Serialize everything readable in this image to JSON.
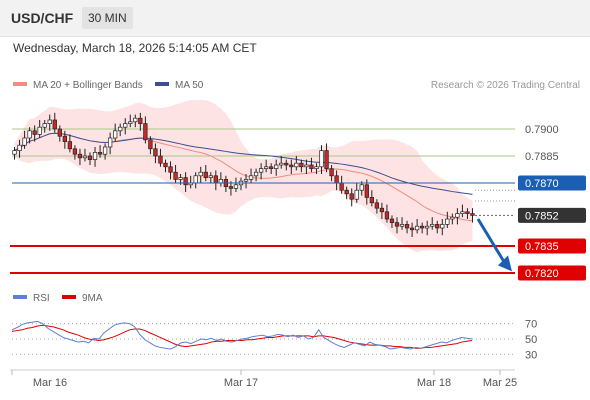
{
  "header": {
    "symbol": "USD/CHF",
    "timeframe": "30 MIN",
    "datetime": "Wednesday, March 18, 2026 5:14:05 AM CET"
  },
  "legend": {
    "ma20": "MA 20 + Bollinger Bands",
    "ma50": "MA 50",
    "credit": "Research © 2026 Trading Central",
    "rsi": "RSI",
    "rsi_ma": "9MA"
  },
  "colors": {
    "ma20": "#f28b82",
    "band_fill": "#fde3e3",
    "ma50": "#3d4f8e",
    "up_candle": "#ffffff",
    "down_candle": "#c62828",
    "candle_outline": "#222222",
    "resistance_green": "#a8c98a",
    "pivot_blue": "#1a5fb4",
    "support_red": "#e00000",
    "last_price": "#333333",
    "rsi": "#5b7fd6",
    "rsi_ma": "#e00000",
    "arrow": "#1a5fb4"
  },
  "chart_data": [
    {
      "type": "candlestick",
      "title": "USD/CHF",
      "timeframe": "30 MIN",
      "x_axis_ticks": [
        "Mar 16",
        "Mar 17",
        "Mar 18",
        "Mar 25"
      ],
      "ylim": [
        0.7815,
        0.7915
      ],
      "price_levels": [
        {
          "value": "0.7900",
          "kind": "resistance"
        },
        {
          "value": "0.7885",
          "kind": "resistance"
        },
        {
          "value": "0.7870",
          "kind": "pivot"
        },
        {
          "value": "0.7852",
          "kind": "last"
        },
        {
          "value": "0.7835",
          "kind": "support"
        },
        {
          "value": "0.7820",
          "kind": "support"
        }
      ],
      "forecast_arrow": {
        "from": 0.785,
        "to": 0.7822
      },
      "close_series": [
        0.7888,
        0.7891,
        0.7895,
        0.7899,
        0.7897,
        0.7901,
        0.7903,
        0.7905,
        0.79,
        0.7896,
        0.7893,
        0.7889,
        0.7886,
        0.7884,
        0.7885,
        0.7883,
        0.7887,
        0.7886,
        0.789,
        0.7895,
        0.7899,
        0.7901,
        0.7903,
        0.7904,
        0.7906,
        0.7903,
        0.7894,
        0.7889,
        0.7885,
        0.7881,
        0.7879,
        0.7876,
        0.7872,
        0.7873,
        0.7869,
        0.787,
        0.7874,
        0.7876,
        0.7873,
        0.7874,
        0.787,
        0.7872,
        0.7868,
        0.7867,
        0.7869,
        0.7871,
        0.7872,
        0.7874,
        0.7876,
        0.7878,
        0.7879,
        0.7878,
        0.788,
        0.7881,
        0.788,
        0.7879,
        0.7881,
        0.7879,
        0.788,
        0.7878,
        0.7879,
        0.7888,
        0.7878,
        0.7874,
        0.787,
        0.7866,
        0.7864,
        0.7861,
        0.7866,
        0.7869,
        0.7862,
        0.7859,
        0.7856,
        0.7854,
        0.785,
        0.7848,
        0.7846,
        0.7847,
        0.7845,
        0.7844,
        0.7846,
        0.7845,
        0.7846,
        0.7847,
        0.7845,
        0.7847,
        0.785,
        0.7851,
        0.7853,
        0.7854,
        0.7853,
        0.7852
      ],
      "rsi": {
        "levels": [
          "70",
          "50",
          "30"
        ],
        "ylim": [
          20,
          80
        ],
        "values": [
          62,
          65,
          69,
          71,
          72,
          73,
          70,
          64,
          60,
          56,
          52,
          50,
          48,
          46,
          47,
          45,
          51,
          50,
          58,
          63,
          68,
          70,
          71,
          70,
          66,
          56,
          49,
          45,
          41,
          39,
          38,
          37,
          40,
          45,
          46,
          44,
          47,
          50,
          49,
          51,
          48,
          50,
          47,
          46,
          48,
          50,
          51,
          53,
          54,
          55,
          53,
          54,
          56,
          55,
          53,
          55,
          52,
          54,
          50,
          52,
          62,
          52,
          48,
          44,
          41,
          39,
          42,
          45,
          43,
          41,
          46,
          43,
          42,
          40,
          37,
          38,
          39,
          38,
          37,
          39,
          38,
          40,
          42,
          44,
          46,
          45,
          48,
          50,
          52,
          51,
          50
        ],
        "ma9": [
          60,
          61,
          62,
          64,
          65,
          67,
          68,
          67,
          66,
          64,
          62,
          59,
          57,
          55,
          52,
          50,
          49,
          48,
          49,
          51,
          53,
          56,
          59,
          62,
          63,
          63,
          61,
          58,
          55,
          52,
          49,
          46,
          43,
          41,
          40,
          41,
          42,
          43,
          44,
          46,
          47,
          47,
          48,
          48,
          48,
          48,
          49,
          49,
          50,
          51,
          52,
          52,
          53,
          54,
          54,
          54,
          54,
          54,
          54,
          53,
          54,
          54,
          53,
          52,
          50,
          48,
          46,
          45,
          44,
          43,
          42,
          42,
          42,
          41,
          41,
          40,
          40,
          39,
          39,
          38,
          38,
          39,
          39,
          40,
          41,
          42,
          43,
          44,
          46,
          47,
          48
        ]
      }
    }
  ]
}
